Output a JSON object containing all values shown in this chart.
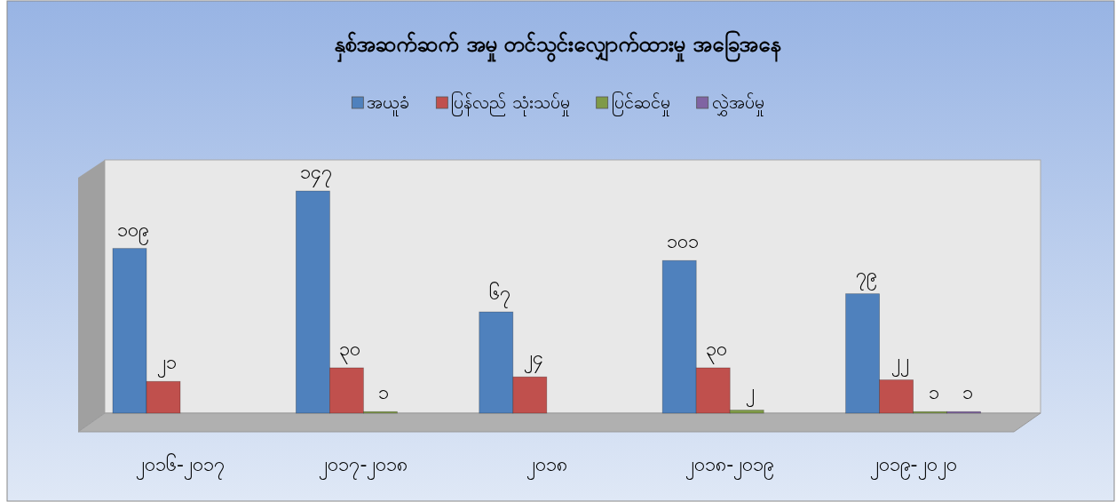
{
  "chart_data": {
    "type": "bar",
    "title": "နှစ်အဆက်ဆက် အမှု တင်သွင်းလျှောက်ထားမှု အခြေအနေ",
    "categories": [
      "၂၀၁၆-၂၀၁၇",
      "၂၀၁၇-၂၀၁၈",
      "၂၀၁၈",
      "၂၀၁၈-၂၀၁၉",
      "၂၀၁၉-၂၀၂၀"
    ],
    "series": [
      {
        "name": "အယူခံ",
        "color": "#4f81bd",
        "values": [
          109,
          147,
          67,
          101,
          79
        ],
        "value_labels": [
          "၁၀၉",
          "၁၄၇",
          "၆၇",
          "၁၀၁",
          "၇၉"
        ]
      },
      {
        "name": "ပြန်လည် သုံးသပ်မှု",
        "color": "#c0504d",
        "values": [
          21,
          30,
          24,
          30,
          22
        ],
        "value_labels": [
          "၂၁",
          "၃၀",
          "၂၄",
          "၃၀",
          "၂၂"
        ]
      },
      {
        "name": "ပြင်ဆင်မှု",
        "color": "#7f9a48",
        "values": [
          null,
          1,
          null,
          2,
          1
        ],
        "value_labels": [
          null,
          "၁",
          null,
          "၂",
          "၁"
        ]
      },
      {
        "name": "လွှဲအပ်မှု",
        "color": "#8064a2",
        "values": [
          null,
          null,
          null,
          null,
          1
        ],
        "value_labels": [
          null,
          null,
          null,
          null,
          "၁"
        ]
      }
    ],
    "legend": "top",
    "grid": false
  }
}
